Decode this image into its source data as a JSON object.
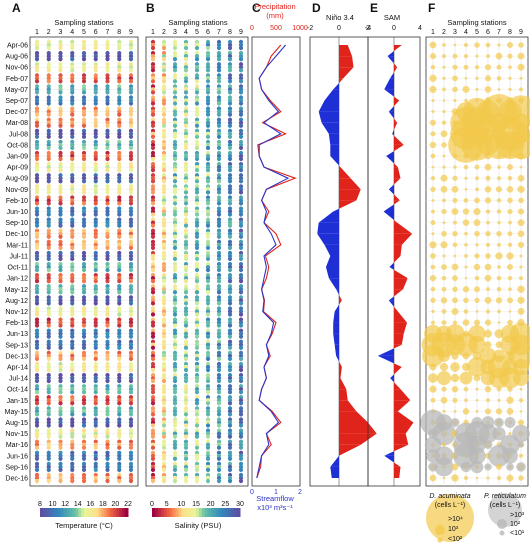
{
  "panel_letters": [
    "A",
    "B",
    "C",
    "D",
    "E",
    "F"
  ],
  "months": [
    "Apr-06",
    "Aug-06",
    "Nov-06",
    "Feb-07",
    "May-07",
    "Sep-07",
    "Dec-07",
    "Mar-08",
    "Jul-08",
    "Oct-08",
    "Jan-09",
    "Apr-09",
    "Aug-09",
    "Nov-09",
    "Feb-10",
    "Jun-10",
    "Sep-10",
    "Dec-10",
    "Mar-11",
    "Jul-11",
    "Oct-11",
    "Jan-12",
    "May-12",
    "Aug-12",
    "Nov-12",
    "Feb-13",
    "Jun-13",
    "Sep-13",
    "Dec-13",
    "Apr-14",
    "Jul-14",
    "Oct-14",
    "Jan-15",
    "May-15",
    "Aug-15",
    "Nov-15",
    "Mar-16",
    "Jun-16",
    "Sep-16",
    "Dec-16"
  ],
  "panel_a": {
    "title": "Sampling stations",
    "stations": [
      "1",
      "2",
      "3",
      "4",
      "5",
      "6",
      "7",
      "8",
      "9"
    ],
    "colorbar_label": "Temperature (°C)",
    "colorbar_ticks": [
      "8",
      "10",
      "12",
      "14",
      "16",
      "18",
      "20",
      "22"
    ]
  },
  "panel_b": {
    "title": "Sampling stations",
    "stations": [
      "1",
      "2",
      "3",
      "4",
      "5",
      "6",
      "7",
      "8",
      "9"
    ],
    "colorbar_label": "Salinity (PSU)",
    "colorbar_ticks": [
      "0",
      "5",
      "10",
      "15",
      "20",
      "25",
      "30"
    ]
  },
  "panel_c": {
    "top_label_1": "Precipitation",
    "top_label_2": "(mm)",
    "top_ticks": [
      "0",
      "500",
      "1000"
    ],
    "bottom_ticks": [
      "0",
      "1",
      "2"
    ],
    "bottom_label_1": "Streamflow",
    "bottom_label_2": "x10³ m³s⁻¹"
  },
  "panel_d": {
    "title": "Niño 3.4",
    "ticks": [
      "-2",
      "0",
      "2"
    ]
  },
  "panel_e": {
    "title": "SAM",
    "ticks": [
      "-4",
      "0",
      "4"
    ]
  },
  "panel_f": {
    "title": "Sampling stations",
    "stations": [
      "1",
      "2",
      "3",
      "4",
      "5",
      "6",
      "7",
      "8",
      "9"
    ],
    "legend": {
      "da_name": "D. acuminata",
      "da_unit": "(cells L⁻¹)",
      "da_sizes": [
        ">10⁴",
        "10³",
        "<10²"
      ],
      "pr_name": "P. reticulatum",
      "pr_unit": "(cells L⁻¹)",
      "pr_sizes": [
        ">10³",
        "10²",
        "<10¹"
      ]
    }
  },
  "colors": {
    "precip": "#e0231b",
    "flow": "#2b35c9",
    "pos": "#e0231b",
    "neg": "#1f2fd6",
    "da": "#f2c94c",
    "pr": "#b8b8b8"
  },
  "chart_data": [
    {
      "type": "scatter",
      "name": "A",
      "title": "Sampling stations",
      "colorbar": "Temperature (°C)",
      "crange": [
        8,
        22
      ],
      "annual_cycle_note": "warm summer (Dec-Feb) yellow-red, cool winter (Jun-Aug) blue-green"
    },
    {
      "type": "scatter",
      "name": "B",
      "title": "Sampling stations",
      "colorbar": "Salinity (PSU)",
      "crange": [
        0,
        30
      ]
    },
    {
      "type": "line",
      "name": "C",
      "series": [
        {
          "name": "Precipitation",
          "unit": "mm",
          "xlim": [
            0,
            1000
          ],
          "values": [
            600,
            400,
            300,
            150,
            200,
            380,
            600,
            220,
            700,
            120,
            150,
            250,
            900,
            300,
            200,
            350,
            250,
            500,
            600,
            280,
            350,
            300,
            200,
            260,
            240,
            500,
            420,
            300,
            380,
            250,
            300,
            200,
            150,
            420,
            600,
            300,
            400,
            200,
            180,
            100
          ]
        },
        {
          "name": "Streamflow",
          "unit": "x10³ m³s⁻¹",
          "xlim": [
            0,
            2
          ],
          "values": [
            1.4,
            1.0,
            0.6,
            0.3,
            0.4,
            0.7,
            1.1,
            0.5,
            1.2,
            0.3,
            0.3,
            0.5,
            1.5,
            0.6,
            0.4,
            0.6,
            0.5,
            0.8,
            1.0,
            0.5,
            0.6,
            0.5,
            0.4,
            0.5,
            0.45,
            0.9,
            0.8,
            0.6,
            0.7,
            0.5,
            0.6,
            0.4,
            0.3,
            0.8,
            1.1,
            0.6,
            0.7,
            0.4,
            0.3,
            0.2
          ]
        }
      ]
    },
    {
      "type": "area",
      "name": "D",
      "title": "Niño 3.4",
      "xlim": [
        -2,
        2
      ],
      "values": [
        0.6,
        0.9,
        1.0,
        0.3,
        -0.4,
        -1.0,
        -1.4,
        -1.2,
        -0.7,
        -0.6,
        -0.6,
        0.1,
        0.8,
        1.5,
        1.2,
        -0.4,
        -1.4,
        -1.5,
        -1.0,
        -0.6,
        -0.9,
        -0.7,
        -0.2,
        0.2,
        -0.3,
        -0.4,
        -0.4,
        -0.3,
        -0.2,
        0.2,
        0.1,
        0.5,
        0.6,
        1.2,
        2.0,
        2.6,
        1.5,
        0.0,
        -0.6,
        -0.5
      ]
    },
    {
      "type": "area",
      "name": "E",
      "title": "SAM",
      "xlim": [
        -4,
        4
      ],
      "values": [
        1.2,
        -1.0,
        0.5,
        -0.6,
        -1.5,
        0.8,
        -0.8,
        0.5,
        -0.3,
        1.5,
        -1.2,
        0.6,
        1.0,
        -0.8,
        0.9,
        -1.6,
        0.5,
        2.8,
        1.2,
        1.0,
        -0.7,
        2.1,
        1.4,
        -0.8,
        0.6,
        2.0,
        1.5,
        1.2,
        -2.5,
        1.2,
        -0.6,
        1.0,
        2.5,
        0.6,
        3.0,
        1.8,
        2.2,
        -1.5,
        1.0,
        0.8
      ]
    },
    {
      "type": "scatter",
      "name": "F",
      "title": "Sampling stations",
      "series": [
        "D. acuminata",
        "P. reticulatum"
      ]
    }
  ]
}
